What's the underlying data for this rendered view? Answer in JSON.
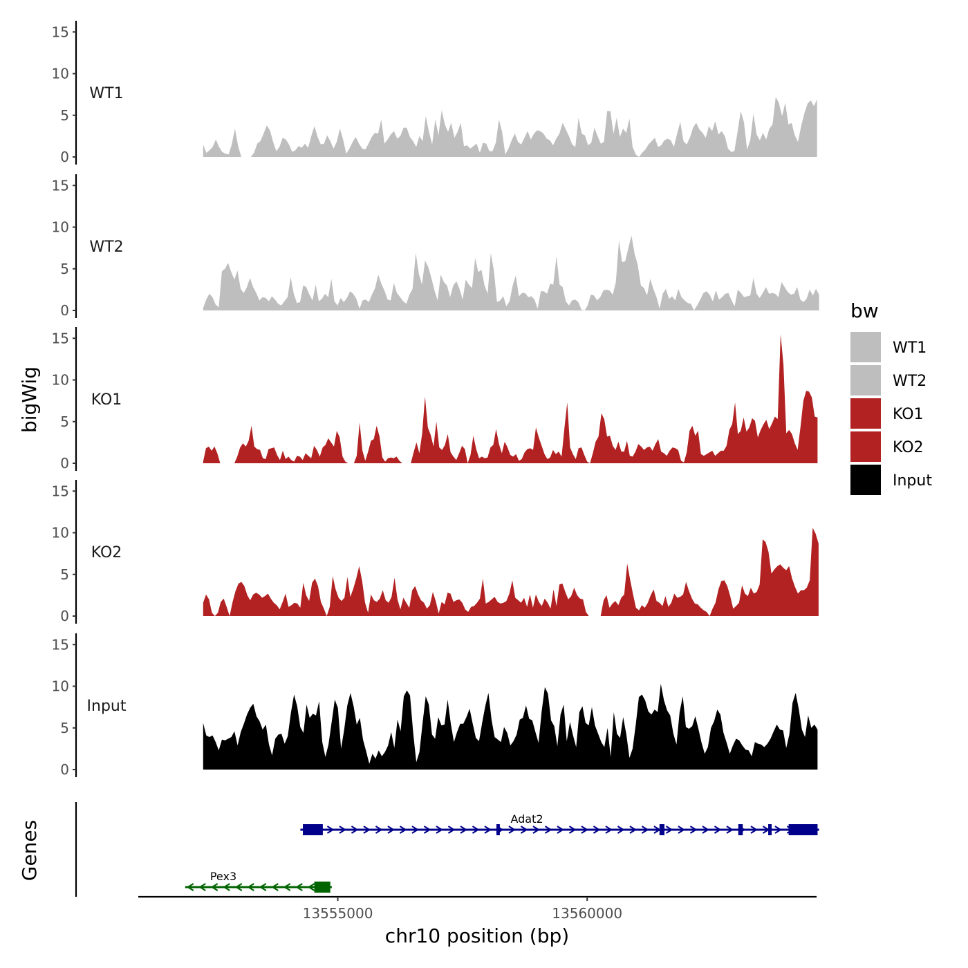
{
  "chart_data": {
    "type": "area",
    "ylabel": "bigWig",
    "genes_label": "Genes",
    "xlabel": "chr10 position (bp)",
    "x_range": [
      13551000,
      13564600
    ],
    "x_ticks": [
      {
        "value": 13555000,
        "label": "13555000"
      },
      {
        "value": 13560000,
        "label": "13560000"
      }
    ],
    "y_range": [
      0,
      16
    ],
    "y_ticks": [
      {
        "value": 0,
        "label": "0"
      },
      {
        "value": 5,
        "label": "5"
      },
      {
        "value": 10,
        "label": "10"
      },
      {
        "value": 15,
        "label": "15"
      }
    ],
    "legend": {
      "title": "bw",
      "placement": "right",
      "entries": [
        {
          "label": "WT1",
          "color": "#bebebe"
        },
        {
          "label": "WT2",
          "color": "#bebebe"
        },
        {
          "label": "KO1",
          "color": "#b22222"
        },
        {
          "label": "KO2",
          "color": "#b22222"
        },
        {
          "label": "Input",
          "color": "#000000"
        }
      ]
    },
    "tracks": [
      {
        "name": "WT1",
        "color": "#bebebe",
        "x_start": 13552300,
        "x_end": 13564610,
        "values": [
          1.5,
          0.5,
          0.8,
          1.2,
          2.1,
          1.2,
          0.6,
          0.4,
          0.3,
          1.5,
          3.4,
          1.3,
          0,
          0,
          0,
          0,
          0.5,
          1.6,
          1.9,
          2.8,
          3.8,
          3.2,
          1.8,
          0.7,
          1.2,
          2.3,
          2.1,
          1.5,
          0.6,
          0.8,
          1.3,
          1.1,
          1.6,
          1.1,
          2.5,
          3.7,
          2.4,
          1.5,
          1.6,
          2.6,
          1.9,
          1.0,
          1.8,
          3.4,
          2.1,
          0.4,
          1.0,
          1.8,
          2.4,
          1.6,
          1.0,
          0.9,
          1.6,
          2.4,
          2.9,
          2.8,
          4.5,
          1.6,
          2.1,
          2.7,
          3.1,
          2.2,
          2.5,
          3.5,
          3.5,
          2.4,
          1.9,
          1.2,
          2.5,
          1.9,
          4.9,
          3.0,
          1.5,
          4.5,
          2.6,
          5.6,
          3.9,
          3.0,
          4.1,
          2.3,
          3.0,
          4.1,
          1.3,
          1.4,
          1.0,
          1.3,
          1.6,
          0.5,
          1.7,
          1.6,
          0.7,
          0.7,
          1.7,
          4.5,
          3.0,
          0.3,
          1.0,
          2.0,
          2.8,
          1.8,
          1.5,
          2.3,
          3.1,
          2.1,
          2.8,
          3.2,
          3.1,
          2.8,
          2.2,
          2.0,
          1.4,
          2.2,
          2.8,
          4.1,
          3.3,
          2.5,
          1.5,
          1.2,
          4.7,
          2.8,
          2.6,
          1.4,
          1.7,
          3.5,
          2.5,
          1.6,
          1.8,
          5.5,
          5.5,
          2.8,
          4.7,
          2.4,
          3.4,
          2.9,
          4.6,
          1.2,
          0.3,
          0,
          0.5,
          0.9,
          1.5,
          1.9,
          2.3,
          1.2,
          1.4,
          2.0,
          2.2,
          2.0,
          1.2,
          2.8,
          4.2,
          1.9,
          1.5,
          2.3,
          3.5,
          4.1,
          3.3,
          2.9,
          2.3,
          3.7,
          3.1,
          4.3,
          2.7,
          3.1,
          2.5,
          1.0,
          0.6,
          0.7,
          3.0,
          5.5,
          4.2,
          0.9,
          2.0,
          5.2,
          2.7,
          2.0,
          2.9,
          2.1,
          3.4,
          3.9,
          7.2,
          6.5,
          4.9,
          6.5,
          3.9,
          4.1,
          2.6,
          1.8,
          3.7,
          5.2,
          6.4,
          6.8,
          6.1,
          6.9
        ]
      },
      {
        "name": "WT2",
        "color": "#bebebe",
        "x_start": 13552300,
        "x_end": 13564650,
        "values": [
          0.3,
          1.3,
          2.0,
          1.6,
          0.7,
          0.4,
          4.7,
          5.0,
          5.7,
          4.6,
          3.7,
          4.8,
          2.6,
          2.1,
          2.8,
          3.9,
          2.8,
          2.1,
          1.2,
          1.6,
          1.5,
          1.1,
          1.7,
          1.3,
          0.8,
          0.6,
          1.1,
          1.6,
          4.0,
          2.0,
          0.9,
          1.0,
          3.0,
          2.8,
          1.9,
          1.2,
          3.1,
          1.1,
          1.4,
          2.0,
          1.6,
          3.8,
          1.1,
          0.6,
          1.5,
          1.0,
          1.5,
          2.3,
          2.0,
          1.4,
          0.2,
          1.2,
          1.3,
          1.0,
          1.9,
          2.7,
          4.3,
          3.2,
          2.4,
          1.3,
          1.2,
          3.3,
          2.1,
          1.6,
          1.1,
          0.8,
          1.9,
          2.6,
          6.9,
          4.4,
          3.1,
          6.0,
          5.2,
          3.9,
          2.4,
          1.2,
          4.3,
          3.4,
          3.0,
          1.6,
          3.0,
          3.5,
          2.6,
          1.3,
          3.7,
          3.1,
          2.7,
          6.3,
          4.6,
          4.9,
          3.0,
          2.0,
          6.9,
          4.8,
          1.0,
          1.2,
          1.7,
          0.5,
          1.1,
          3.0,
          4.2,
          1.7,
          2.1,
          2.1,
          1.6,
          1.7,
          1.3,
          0.2,
          2.3,
          2.3,
          2.0,
          3.2,
          3.1,
          6.5,
          3.1,
          2.8,
          1.1,
          0.6,
          1.2,
          1.3,
          1.0,
          0.1,
          0,
          0.6,
          1.9,
          1.8,
          1.2,
          1.6,
          2.4,
          2.5,
          2.4,
          1.9,
          3.4,
          8.4,
          5.8,
          5.9,
          7.5,
          9.0,
          6.8,
          5.5,
          3.0,
          2.7,
          1.8,
          3.8,
          2.6,
          1.6,
          0.2,
          2.0,
          2.6,
          1.4,
          1.7,
          1.2,
          2.6,
          1.6,
          1.2,
          0.9,
          0.8,
          0,
          0.6,
          1.3,
          2.1,
          2.3,
          1.9,
          1.1,
          2.4,
          1.3,
          1.6,
          2.0,
          2.1,
          1.2,
          0.5,
          2.5,
          2.1,
          1.6,
          1.7,
          1.8,
          3.9,
          2.0,
          1.5,
          2.1,
          2.8,
          2.0,
          2.1,
          2.0,
          1.6,
          3.4,
          2.8,
          2.2,
          1.9,
          2.0,
          2.8,
          1.3,
          1.0,
          1.4,
          2.5,
          1.8,
          2.6,
          1.9
        ]
      },
      {
        "name": "KO1",
        "color": "#b22222",
        "x_start": 13552300,
        "x_end": 13564620,
        "values": [
          0.2,
          1.8,
          2.0,
          1.5,
          2.0,
          1.2,
          0,
          0,
          0,
          0,
          0,
          0,
          0.8,
          1.9,
          2.4,
          2.0,
          2.7,
          4.5,
          2.0,
          1.7,
          1.6,
          0.6,
          0.5,
          1.7,
          1.8,
          1.9,
          1.0,
          0.4,
          1.5,
          0.5,
          0.8,
          0.4,
          0.2,
          0.9,
          0.8,
          0.4,
          1.2,
          0.9,
          0.6,
          2.1,
          1.6,
          0.8,
          1.9,
          2.2,
          3.0,
          2.5,
          2.0,
          3.9,
          3.1,
          0.8,
          0.2,
          0,
          0,
          0,
          0.9,
          4.9,
          1.5,
          0.3,
          1.4,
          2.7,
          2.9,
          4.5,
          3.2,
          0.7,
          0.2,
          0.6,
          0.7,
          0.6,
          0.8,
          0.3,
          0,
          0,
          0,
          0,
          1.3,
          2.5,
          1.2,
          3.6,
          8.0,
          4.3,
          3.4,
          2.0,
          5.0,
          1.9,
          1.6,
          2.2,
          3.5,
          1.3,
          0.8,
          0.4,
          1.2,
          2.1,
          1.7,
          0,
          1.0,
          3.3,
          1.7,
          0.6,
          0.8,
          0.6,
          0.7,
          1.9,
          2.2,
          4.1,
          2.3,
          1.2,
          2.6,
          1.9,
          1.0,
          0.8,
          1.1,
          0.3,
          0.5,
          1.3,
          1.7,
          1.8,
          1.6,
          4.3,
          3.1,
          2.1,
          1.1,
          0.5,
          0.7,
          1.6,
          1.1,
          1.4,
          0.8,
          4.2,
          7.3,
          1.9,
          1.1,
          0.5,
          1.8,
          1.9,
          1.0,
          0.2,
          0,
          1.2,
          2.6,
          3.2,
          6.0,
          5.3,
          3.2,
          3.3,
          2.1,
          1.6,
          2.6,
          1.4,
          1.4,
          2.7,
          0.9,
          0.8,
          1.4,
          2.3,
          2.0,
          1.6,
          1.9,
          2.0,
          1.5,
          2.3,
          2.9,
          1.4,
          1.2,
          0.9,
          1.5,
          1.9,
          1.8,
          1.6,
          0.3,
          0.1,
          1.3,
          3.9,
          4.5,
          3.3,
          3.9,
          1.1,
          0.9,
          1.1,
          1.3,
          1.5,
          0.9,
          1.2,
          1.5,
          1.5,
          2.1,
          4.0,
          4.7,
          7.3,
          3.5,
          3.9,
          5.5,
          3.8,
          4.3,
          5.4,
          5.1,
          3.1,
          4.0,
          4.7,
          5.2,
          4.1,
          4.8,
          5.6,
          5.3,
          15.5,
          11.8,
          3.6,
          4.0,
          3.5,
          2.4,
          1.6,
          4.4,
          7.5,
          8.7,
          8.6,
          7.9,
          5.6,
          5.5
        ]
      },
      {
        "name": "KO2",
        "color": "#b22222",
        "x_start": 13552300,
        "x_end": 13564640,
        "values": [
          1.6,
          2.6,
          2.0,
          0.4,
          0,
          0.4,
          1.7,
          2.1,
          1.1,
          0,
          1.7,
          3.0,
          3.9,
          4.1,
          3.6,
          2.5,
          1.9,
          2.6,
          2.8,
          2.6,
          2.2,
          2.4,
          2.7,
          2.1,
          1.6,
          1.3,
          0.8,
          1.7,
          2.7,
          1.1,
          1.3,
          1.6,
          1.5,
          1.0,
          4.0,
          2.5,
          1.8,
          4.0,
          4.5,
          3.6,
          1.7,
          0.9,
          0,
          1.1,
          4.8,
          3.2,
          2.2,
          1.8,
          2.2,
          4.7,
          2.3,
          3.3,
          4.5,
          6.0,
          4.2,
          1.6,
          0.4,
          2.6,
          1.9,
          1.7,
          2.1,
          3.1,
          1.9,
          1.6,
          2.3,
          4.6,
          2.0,
          0.8,
          2.2,
          1.6,
          1.0,
          3.1,
          3.6,
          2.6,
          1.9,
          1.6,
          0.9,
          1.3,
          2.9,
          1.8,
          0.3,
          1.7,
          1.4,
          2.8,
          2.7,
          1.7,
          1.9,
          2.0,
          1.6,
          0.8,
          0.5,
          1.1,
          1.2,
          1.6,
          2.1,
          4.5,
          1.5,
          1.7,
          2.0,
          2.3,
          1.7,
          1.5,
          1.6,
          1.8,
          2.7,
          4.3,
          2.2,
          1.9,
          1.6,
          2.2,
          1.1,
          2.6,
          1.0,
          2.6,
          1.7,
          1.2,
          2.1,
          1.6,
          0.9,
          3.2,
          1.2,
          3.8,
          3.9,
          2.9,
          2.0,
          2.4,
          3.4,
          2.5,
          2.1,
          2.0,
          0.5,
          0,
          0,
          0,
          0,
          0,
          1.9,
          2.5,
          1.0,
          1.5,
          1.8,
          1.3,
          2.2,
          2.6,
          6.3,
          4.4,
          2.6,
          1.0,
          0.7,
          1.3,
          1.0,
          1.6,
          2.5,
          3.2,
          1.8,
          1.6,
          1.2,
          2.4,
          1.1,
          1.6,
          2.7,
          2.2,
          2.3,
          2.6,
          4.1,
          3.0,
          2.1,
          1.5,
          1.4,
          1.0,
          0.7,
          0.5,
          0,
          0.9,
          1.6,
          3.2,
          4.2,
          4.3,
          3.6,
          2.4,
          0.9,
          1.2,
          1.6,
          3.7,
          2.7,
          2.4,
          3.4,
          2.7,
          2.9,
          3.8,
          9.2,
          8.9,
          7.7,
          5.1,
          5.6,
          6.0,
          6.2,
          5.8,
          5.5,
          6.0,
          4.5,
          3.5,
          2.7,
          3.1,
          3.1,
          3.4,
          4.3,
          10.6,
          9.9,
          8.7
        ]
      },
      {
        "name": "Input",
        "color": "#000000",
        "x_start": 13552300,
        "x_end": 13564620,
        "values": [
          5.6,
          4.1,
          3.9,
          4.1,
          3.3,
          2.3,
          3.6,
          3.5,
          3.7,
          3.9,
          4.6,
          2.9,
          4.5,
          5.5,
          6.6,
          7.4,
          7.9,
          6.4,
          5.8,
          4.8,
          5.4,
          3.0,
          1.7,
          3.7,
          4.2,
          4.3,
          3.1,
          4.0,
          6.8,
          9.0,
          7.6,
          5.1,
          4.4,
          7.8,
          6.2,
          6.7,
          6.5,
          8.2,
          3.3,
          1.5,
          3.0,
          5.7,
          8.4,
          7.4,
          2.5,
          4.8,
          7.7,
          9.2,
          7.6,
          5.4,
          6.2,
          3.6,
          2.2,
          0.7,
          1.9,
          1.3,
          2.3,
          1.6,
          2.1,
          2.9,
          4.5,
          2.6,
          6.0,
          4.6,
          8.8,
          9.5,
          8.9,
          4.4,
          0.9,
          2.1,
          5.6,
          8.8,
          7.8,
          4.2,
          3.7,
          6.3,
          5.3,
          5.4,
          8.4,
          5.5,
          3.3,
          4.5,
          5.5,
          5.5,
          6.3,
          7.3,
          5.5,
          3.8,
          3.4,
          5.6,
          7.6,
          9.2,
          6.0,
          3.9,
          3.6,
          3.3,
          5.1,
          4.4,
          2.9,
          3.4,
          4.2,
          6.0,
          6.2,
          7.7,
          6.1,
          5.9,
          4.5,
          3.2,
          7.0,
          9.9,
          9.1,
          5.9,
          5.2,
          2.8,
          6.6,
          7.8,
          3.4,
          5.7,
          4.1,
          2.7,
          6.9,
          7.6,
          5.6,
          5.3,
          7.5,
          5.3,
          4.3,
          3.3,
          2.7,
          5.0,
          1.5,
          6.9,
          4.3,
          3.8,
          6.3,
          4.2,
          1.4,
          2.5,
          5.4,
          8.7,
          9.0,
          8.3,
          7.0,
          6.6,
          7.2,
          6.9,
          10.3,
          8.3,
          7.1,
          6.5,
          4.3,
          3.0,
          6.9,
          8.8,
          5.1,
          4.9,
          5.2,
          6.4,
          4.9,
          3.2,
          1.9,
          2.7,
          5.0,
          5.8,
          7.2,
          6.6,
          4.4,
          3.2,
          1.9,
          2.9,
          3.7,
          3.5,
          2.9,
          2.4,
          2.3,
          1.6,
          3.3,
          3.1,
          3.0,
          2.7,
          3.1,
          3.7,
          4.6,
          5.4,
          4.8,
          4.7,
          2.6,
          4.2,
          8.0,
          9.2,
          7.3,
          4.8,
          3.9,
          6.5,
          5.0,
          5.4,
          4.8
        ]
      }
    ],
    "genes": [
      {
        "name": "Adat2",
        "color": "#00008b",
        "strand": "+",
        "row": 1,
        "start": 13554250,
        "end": 13564650,
        "exons": [
          [
            13554300,
            13554700
          ],
          [
            13558180,
            13558240
          ],
          [
            13561450,
            13561550
          ],
          [
            13563030,
            13563120
          ],
          [
            13563630,
            13563680
          ],
          [
            13564040,
            13564620
          ]
        ]
      },
      {
        "name": "Pex3",
        "color": "#006400",
        "strand": "-",
        "row": 2,
        "start": 13551940,
        "end": 13554880,
        "exons": [
          [
            13554530,
            13554850
          ]
        ]
      }
    ]
  }
}
